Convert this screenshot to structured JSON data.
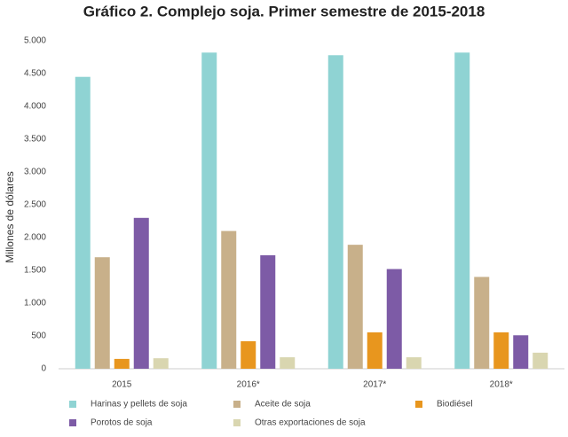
{
  "chart_data": {
    "type": "bar",
    "title": "Gráfico 2. Complejo soja. Primer semestre de 2015-2018",
    "y_label": "Millones de dólares",
    "categories": [
      "2015",
      "2016*",
      "2017*",
      "2018*"
    ],
    "series": [
      {
        "name": "Harinas y pellets de soja",
        "color": "#8fd3d3",
        "values": [
          4450,
          4820,
          4780,
          4820
        ]
      },
      {
        "name": "Aceite de soja",
        "color": "#c8b08a",
        "values": [
          1700,
          2100,
          1890,
          1400
        ]
      },
      {
        "name": "Biodiésel",
        "color": "#e8961e",
        "values": [
          150,
          420,
          555,
          555
        ]
      },
      {
        "name": "Porotos de soja",
        "color": "#7d5ba6",
        "values": [
          2300,
          1730,
          1520,
          510
        ]
      },
      {
        "name": "Otras exportaciones de soja",
        "color": "#d9d6b0",
        "values": [
          160,
          175,
          175,
          245
        ]
      }
    ],
    "ylim": [
      0,
      5000
    ],
    "yticks": [
      0,
      500,
      {
        "value": 1000,
        "label": "1.000"
      },
      {
        "value": 1500,
        "label": "1.500"
      },
      {
        "value": 2000,
        "label": "2.000"
      },
      {
        "value": 2500,
        "label": "2.500"
      },
      {
        "value": 3000,
        "label": "3.000"
      },
      {
        "value": 3500,
        "label": "3.500"
      },
      {
        "value": 4000,
        "label": "4.000"
      },
      {
        "value": 4500,
        "label": "4.500"
      },
      {
        "value": 5000,
        "label": "5.000"
      }
    ],
    "grid": false
  }
}
